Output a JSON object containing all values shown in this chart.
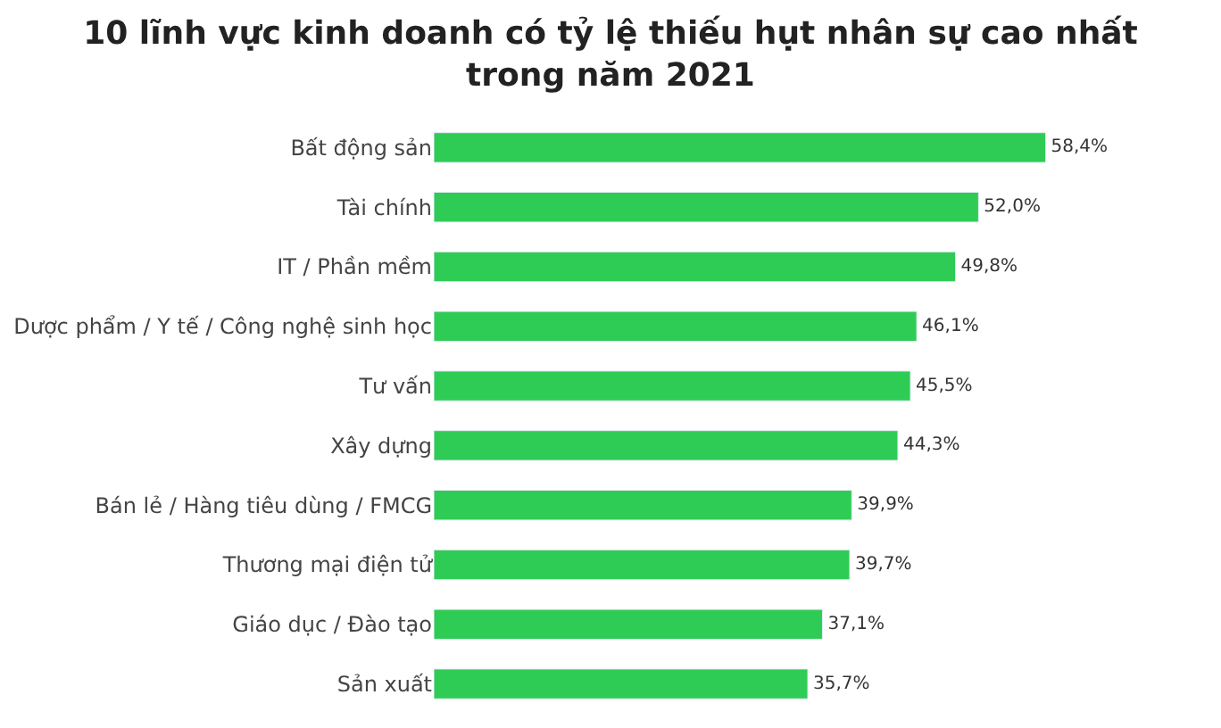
{
  "chart_data": {
    "type": "bar",
    "orientation": "horizontal",
    "title": "10 lĩnh vực kinh doanh có tỷ lệ thiếu hụt nhân sự cao nhất trong năm 2021",
    "categories": [
      "Bất động sản",
      "Tài chính",
      "IT / Phần mềm",
      "Dược phẩm / Y tế / Công nghệ sinh học",
      "Tư vấn",
      "Xây dựng",
      "Bán lẻ / Hàng tiêu dùng / FMCG",
      "Thương mại điện tử",
      "Giáo dục / Đào tạo",
      "Sản xuất"
    ],
    "values": [
      58.4,
      52.0,
      49.8,
      46.1,
      45.5,
      44.3,
      39.9,
      39.7,
      37.1,
      35.7
    ],
    "value_labels": [
      "58,4%",
      "52,0%",
      "49,8%",
      "46,1%",
      "45,5%",
      "44,3%",
      "39,9%",
      "39,7%",
      "37,1%",
      "35,7%"
    ],
    "color": "#2ecc55"
  }
}
